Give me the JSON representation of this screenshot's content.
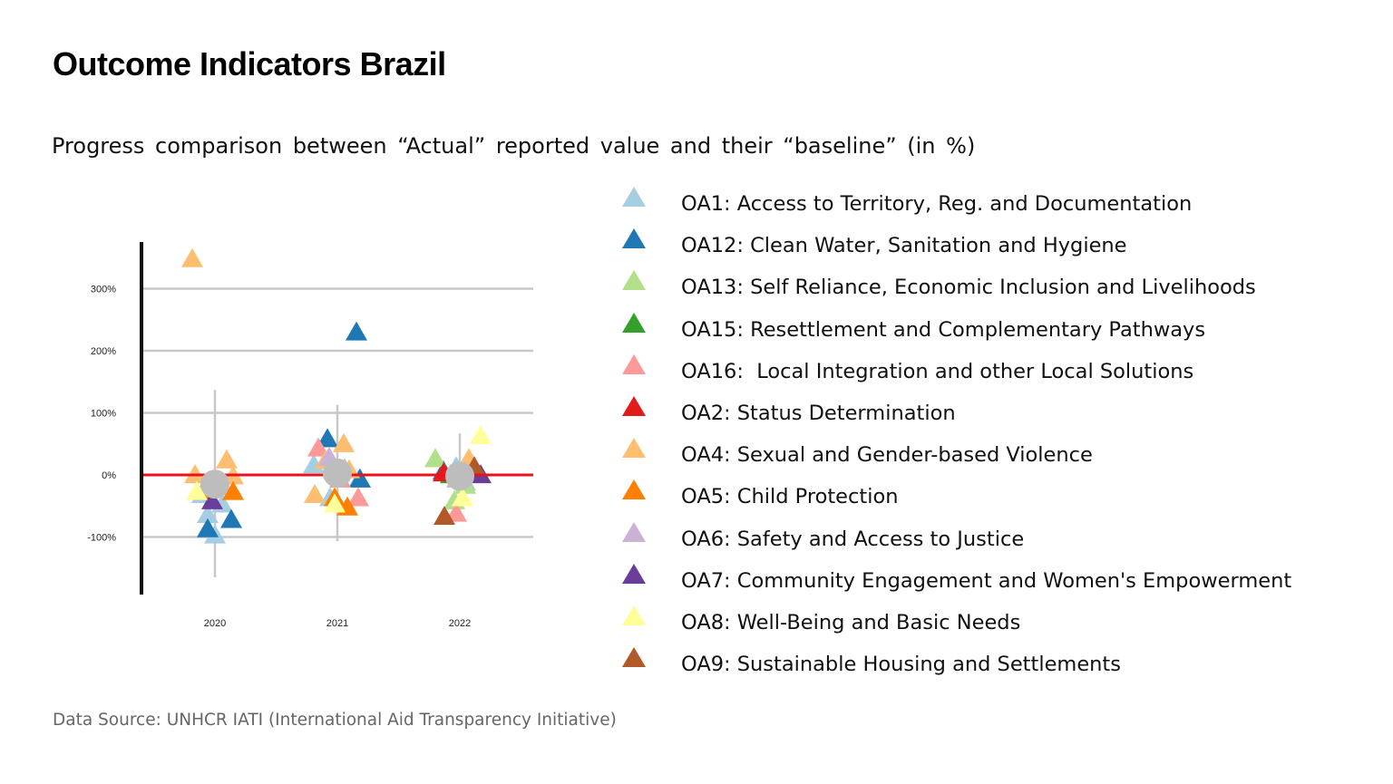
{
  "title": "Outcome Indicators Brazil",
  "subtitle": "Progress comparison between “Actual” reported value and their “baseline” (in %)",
  "source": "Data Source: UNHCR IATI (International Aid Transparency Initiative)",
  "colors": {
    "zero_line": "#e8141c",
    "grid": "#c8c8c8",
    "median": "#bdbdbd",
    "axis": "#111111"
  },
  "chart_data": {
    "type": "scatter",
    "title": "Outcome Indicators Brazil",
    "subtitle": "Progress comparison between “Actual” reported value and their “baseline” (in %)",
    "categories": [
      "2020",
      "2021",
      "2022"
    ],
    "y_ticks": [
      {
        "value": 300,
        "label": "300%"
      },
      {
        "value": 200,
        "label": "200%"
      },
      {
        "value": 100,
        "label": "100%"
      },
      {
        "value": 0,
        "label": "0%"
      },
      {
        "value": -100,
        "label": "-100%"
      }
    ],
    "ylim": [
      -192,
      372
    ],
    "grid": true,
    "marker": "triangle",
    "legend_position": "right",
    "reference_line": {
      "value": 0
    },
    "medians": [
      {
        "category": "2020",
        "value": -15,
        "whisker": [
          -165,
          137
        ]
      },
      {
        "category": "2021",
        "value": 3,
        "whisker": [
          -107,
          113
        ]
      },
      {
        "category": "2022",
        "value": -2,
        "whisker": [
          -73,
          67
        ]
      }
    ],
    "series": [
      {
        "name": "OA1: Access to Territory, Reg. and Documentation",
        "color": "#a6cee3",
        "points": [
          [
            "2020",
            -95,
            0
          ],
          [
            "2020",
            -62,
            -8
          ],
          [
            "2020",
            -20,
            -10
          ],
          [
            "2020",
            -45,
            8
          ],
          [
            "2020",
            -30,
            -14
          ],
          [
            "2021",
            18,
            -26
          ],
          [
            "2021",
            12,
            8
          ],
          [
            "2021",
            -5,
            24
          ],
          [
            "2021",
            -35,
            -8
          ],
          [
            "2022",
            15,
            -4
          ],
          [
            "2022",
            -10,
            6
          ]
        ]
      },
      {
        "name": "OA12: Clean Water, Sanitation and Hygiene",
        "color": "#1f78b4",
        "points": [
          [
            "2020",
            -85,
            -8
          ],
          [
            "2020",
            -70,
            18
          ],
          [
            "2021",
            232,
            21
          ],
          [
            "2021",
            60,
            -11
          ],
          [
            "2021",
            -5,
            25
          ],
          [
            "2022",
            8,
            -18
          ]
        ]
      },
      {
        "name": "OA13: Self Reliance, Economic Inclusion and Livelihoods",
        "color": "#b2df8a",
        "points": [
          [
            "2022",
            28,
            -27
          ],
          [
            "2022",
            -40,
            -6
          ],
          [
            "2022",
            -15,
            6
          ]
        ]
      },
      {
        "name": "OA15: Resettlement and Complementary Pathways",
        "color": "#33a02c",
        "points": [
          [
            "2022",
            2,
            -10
          ]
        ]
      },
      {
        "name": "OA16:  Local Integration and other Local Solutions",
        "color": "#fb9a99",
        "points": [
          [
            "2021",
            45,
            -21
          ],
          [
            "2021",
            -35,
            23
          ],
          [
            "2021",
            -5,
            3
          ],
          [
            "2022",
            -60,
            -4
          ]
        ]
      },
      {
        "name": "OA2: Status Determination",
        "color": "#e31a1c",
        "points": [
          [
            "2022",
            5,
            -18
          ]
        ]
      },
      {
        "name": "OA4: Sexual and Gender-based Violence",
        "color": "#fdbf6f",
        "points": [
          [
            "2020",
            350,
            -25
          ],
          [
            "2020",
            26,
            13
          ],
          [
            "2020",
            0,
            20
          ],
          [
            "2020",
            2,
            -22
          ],
          [
            "2021",
            52,
            7
          ],
          [
            "2021",
            25,
            -13
          ],
          [
            "2021",
            -30,
            -25
          ],
          [
            "2021",
            10,
            13
          ],
          [
            "2022",
            28,
            10
          ]
        ]
      },
      {
        "name": "OA5: Child Protection",
        "color": "#ff7f00",
        "points": [
          [
            "2020",
            -25,
            -13
          ],
          [
            "2020",
            -25,
            20
          ],
          [
            "2021",
            -50,
            11
          ],
          [
            "2021",
            -35,
            -3
          ]
        ]
      },
      {
        "name": "OA6: Safety and Access to Justice",
        "color": "#cab2d6",
        "points": [
          [
            "2021",
            30,
            -9
          ],
          [
            "2021",
            10,
            -4
          ],
          [
            "2022",
            -5,
            -3
          ]
        ]
      },
      {
        "name": "OA7: Community Engagement and Women's Empowerment",
        "color": "#6a3d9a",
        "points": [
          [
            "2020",
            -40,
            -3
          ],
          [
            "2022",
            2,
            23
          ]
        ]
      },
      {
        "name": "OA8: Well-Being and Basic Needs",
        "color": "#ffff99",
        "points": [
          [
            "2020",
            -25,
            -20
          ],
          [
            "2021",
            -45,
            -3
          ],
          [
            "2022",
            65,
            23
          ],
          [
            "2022",
            -35,
            3
          ]
        ]
      },
      {
        "name": "OA9: Sustainable Housing and Settlements",
        "color": "#b15928",
        "points": [
          [
            "2022",
            15,
            16
          ],
          [
            "2022",
            -65,
            -17
          ]
        ]
      }
    ]
  }
}
